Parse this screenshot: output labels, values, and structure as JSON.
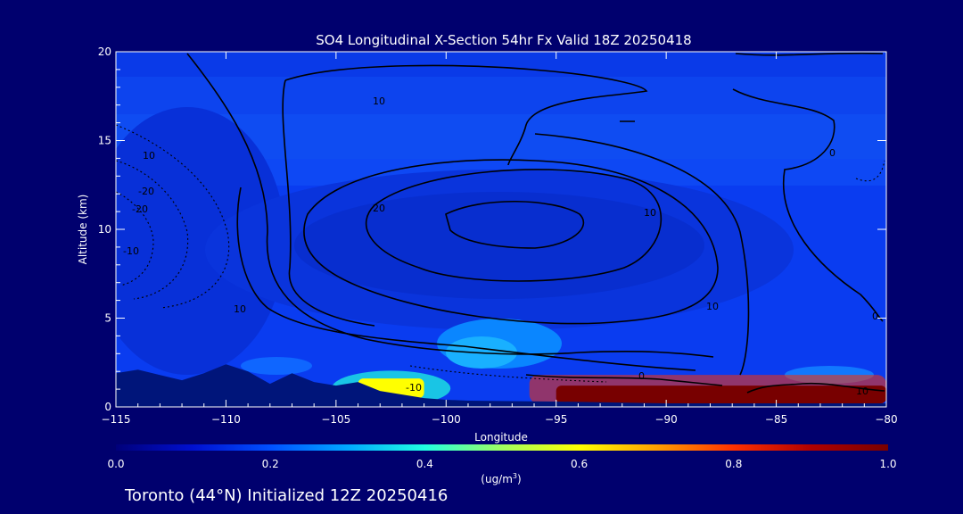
{
  "chart_data": {
    "type": "heatmap",
    "title": "SO4 Longitudinal X-Section 54hr  Fx Valid 18Z 20250418",
    "subtitle": "Toronto (44°N) Initialized 12Z 20250416",
    "xlabel": "Longitude",
    "ylabel": "Altitude (km)",
    "xlim": [
      -115,
      -80
    ],
    "ylim": [
      0,
      20
    ],
    "x_ticks": [
      -115,
      -110,
      -105,
      -100,
      -95,
      -90,
      -85,
      -80
    ],
    "y_ticks": [
      0,
      5,
      10,
      15,
      20
    ],
    "colorbar": {
      "min": 0.0,
      "max": 1.0,
      "ticks": [
        "0.0",
        "0.2",
        "0.4",
        "0.6",
        "0.8",
        "1.0"
      ],
      "unit_label": "(ug/m",
      "unit_sup": "3",
      "unit_close": ")",
      "colors": [
        "#00007a",
        "#0010d0",
        "#0050ff",
        "#00a8ff",
        "#20ffe0",
        "#a0ff60",
        "#ffff00",
        "#ffa000",
        "#ff3000",
        "#b00000",
        "#780000"
      ]
    },
    "contour_labels": [
      "10",
      "10",
      "-20",
      "-20",
      "20",
      "10",
      "0",
      "10",
      "0",
      "10",
      "-10",
      "-10",
      "0",
      "10"
    ],
    "terrain_profile": [
      [
        -115,
        1.9
      ],
      [
        -114,
        2.1
      ],
      [
        -113,
        1.8
      ],
      [
        -112,
        1.5
      ],
      [
        -111,
        1.9
      ],
      [
        -110,
        2.4
      ],
      [
        -109,
        2.0
      ],
      [
        -108,
        1.3
      ],
      [
        -107,
        1.9
      ],
      [
        -106,
        1.4
      ],
      [
        -105,
        1.2
      ],
      [
        -104,
        1.4
      ],
      [
        -103,
        0.9
      ],
      [
        -102,
        0.7
      ],
      [
        -101,
        0.5
      ],
      [
        -100,
        0.4
      ],
      [
        -99,
        0.35
      ],
      [
        -95,
        0.3
      ],
      [
        -90,
        0.2
      ],
      [
        -85,
        0.2
      ],
      [
        -80,
        0.2
      ]
    ],
    "high_concentration_layers": [
      {
        "lon_start": -95,
        "lon_end": -80,
        "alt_bottom": 0.2,
        "alt_top": 1.2,
        "value": 1.0
      },
      {
        "lon_start": -104,
        "lon_end": -101,
        "alt_bottom": 0.5,
        "alt_top": 1.6,
        "value": 0.55
      }
    ]
  }
}
